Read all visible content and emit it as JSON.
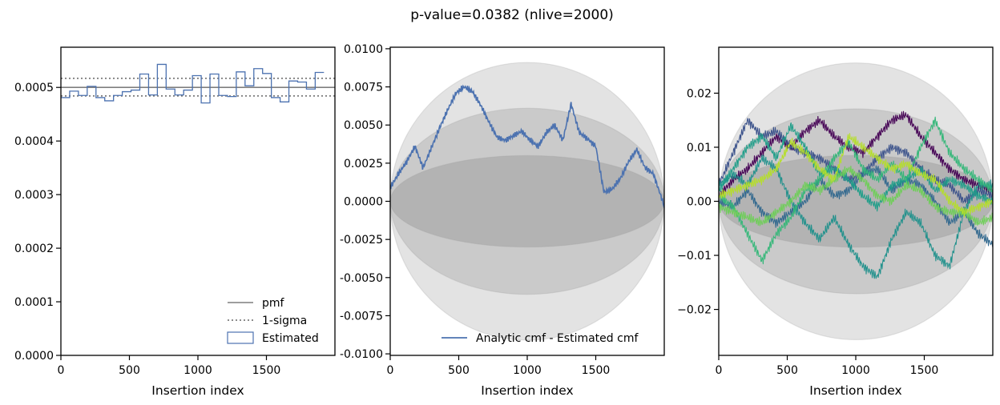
{
  "title": "p-value=0.0382 (nlive=2000)",
  "chart_data": [
    {
      "type": "line",
      "panel": "pmf",
      "xlabel": "Insertion index",
      "ylabel": "",
      "xlim": [
        0,
        2000
      ],
      "ylim": [
        0,
        0.000575
      ],
      "xticks": [
        0,
        500,
        1000,
        1500
      ],
      "xtick_labels": [
        "0",
        "500",
        "1000",
        "1500"
      ],
      "yticks": [
        0,
        0.0001,
        0.0002,
        0.0003,
        0.0004,
        0.0005
      ],
      "ytick_labels": [
        "0.0000",
        "0.0001",
        "0.0002",
        "0.0003",
        "0.0004",
        "0.0005"
      ],
      "legend_position": "lower-right",
      "legend": [
        "pmf",
        "1-sigma",
        "Estimated"
      ],
      "pmf": 0.0005,
      "sigma_band": [
        0.000484,
        0.000517
      ],
      "histogram_bin_width": 64,
      "histogram": [
        0.000481,
        0.000493,
        0.000485,
        0.000502,
        0.000481,
        0.000475,
        0.000485,
        0.000492,
        0.000495,
        0.000525,
        0.000486,
        0.000543,
        0.000497,
        0.000486,
        0.000495,
        0.000522,
        0.000471,
        0.000525,
        0.000485,
        0.000483,
        0.000529,
        0.000503,
        0.000535,
        0.000526,
        0.000481,
        0.000473,
        0.000512,
        0.00051,
        0.000497,
        0.000528
      ]
    },
    {
      "type": "line",
      "panel": "cmf-difference",
      "xlabel": "Insertion index",
      "ylabel": "",
      "xlim": [
        0,
        2000
      ],
      "ylim": [
        -0.0101,
        0.0101
      ],
      "xticks": [
        0,
        500,
        1000,
        1500
      ],
      "xtick_labels": [
        "0",
        "500",
        "1000",
        "1500"
      ],
      "yticks": [
        -0.01,
        -0.0075,
        -0.005,
        -0.0025,
        0,
        0.0025,
        0.005,
        0.0075,
        0.01
      ],
      "ytick_labels": [
        "-0.0100",
        "-0.0075",
        "-0.0050",
        "-0.0025",
        "0.0000",
        "0.0025",
        "0.0050",
        "0.0075",
        "0.0100"
      ],
      "legend_position": "lower-right",
      "bands_sigma_amplitudes": [
        0.003,
        0.0061,
        0.0091
      ],
      "series": [
        {
          "name": "Analytic cmf - Estimated cmf",
          "x": [
            0,
            60,
            120,
            180,
            240,
            300,
            360,
            420,
            480,
            540,
            600,
            660,
            720,
            780,
            840,
            900,
            960,
            1020,
            1080,
            1140,
            1200,
            1260,
            1320,
            1380,
            1440,
            1500,
            1560,
            1620,
            1680,
            1740,
            1800,
            1860,
            1920,
            2000
          ],
          "y": [
            0.0009,
            0.0018,
            0.0026,
            0.0036,
            0.0022,
            0.0035,
            0.0048,
            0.006,
            0.0071,
            0.0075,
            0.0072,
            0.0063,
            0.0052,
            0.0042,
            0.004,
            0.0043,
            0.0046,
            0.004,
            0.0036,
            0.0045,
            0.005,
            0.004,
            0.0064,
            0.0045,
            0.0041,
            0.0036,
            0.0006,
            0.0008,
            0.0015,
            0.0026,
            0.0034,
            0.0022,
            0.0018,
            -0.0003
          ]
        }
      ]
    },
    {
      "type": "line",
      "panel": "cmf-difference-multiple",
      "xlabel": "Insertion index",
      "ylabel": "",
      "xlim": [
        0,
        2000
      ],
      "ylim": [
        -0.0285,
        0.0285
      ],
      "xticks": [
        0,
        500,
        1000,
        1500
      ],
      "xtick_labels": [
        "0",
        "500",
        "1000",
        "1500"
      ],
      "yticks": [
        -0.02,
        -0.01,
        0,
        0.01,
        0.02
      ],
      "ytick_labels": [
        "−0.02",
        "−0.01",
        "0.00",
        "0.01",
        "0.02"
      ],
      "bands_sigma_amplitudes": [
        0.0085,
        0.0171,
        0.0256
      ],
      "series": [
        {
          "color": "#440154",
          "y": [
            0.001,
            0.004,
            0.006,
            0.009,
            0.012,
            0.01,
            0.013,
            0.015,
            0.012,
            0.01,
            0.009,
            0.012,
            0.015,
            0.016,
            0.012,
            0.009,
            0.006,
            0.004,
            0.003,
            0.002
          ]
        },
        {
          "color": "#3b528b",
          "y": [
            0.003,
            0.009,
            0.015,
            0.012,
            0.013,
            0.01,
            0.009,
            0.008,
            0.006,
            0.004,
            0.005,
            0.008,
            0.01,
            0.009,
            0.006,
            0.004,
            0.003,
            0.0,
            0.002,
            0.001
          ]
        },
        {
          "color": "#31688e",
          "y": [
            0.0,
            -0.001,
            0.002,
            -0.002,
            -0.004,
            -0.002,
            0.0,
            0.004,
            0.001,
            0.002,
            0.005,
            0.006,
            0.002,
            0.004,
            0.003,
            0.0,
            -0.004,
            -0.002,
            -0.006,
            -0.008
          ]
        },
        {
          "color": "#21918c",
          "y": [
            0.003,
            0.005,
            0.003,
            0.008,
            0.006,
            0.0,
            -0.004,
            -0.007,
            -0.003,
            -0.008,
            -0.012,
            -0.014,
            -0.007,
            -0.002,
            -0.004,
            -0.01,
            -0.012,
            -0.002,
            0.003,
            0.003
          ]
        },
        {
          "color": "#1f9e89",
          "y": [
            0.002,
            0.006,
            0.01,
            0.012,
            0.008,
            0.014,
            0.01,
            0.005,
            0.006,
            0.004,
            0.001,
            -0.001,
            0.003,
            0.004,
            0.006,
            0.002,
            0.004,
            0.003,
            0.001,
            0.0
          ]
        },
        {
          "color": "#35b779",
          "y": [
            0.001,
            -0.001,
            -0.006,
            -0.011,
            -0.006,
            -0.003,
            0.002,
            0.004,
            0.008,
            0.011,
            0.006,
            0.004,
            0.007,
            0.004,
            0.01,
            0.015,
            0.009,
            0.006,
            0.004,
            0.002
          ]
        },
        {
          "color": "#6ece58",
          "y": [
            -0.001,
            -0.002,
            -0.003,
            -0.004,
            -0.002,
            0.0,
            0.003,
            0.002,
            0.004,
            0.006,
            0.004,
            0.001,
            0.0,
            0.003,
            0.002,
            -0.001,
            -0.002,
            -0.002,
            -0.004,
            -0.003
          ]
        },
        {
          "color": "#b5de2b",
          "y": [
            0.001,
            0.002,
            0.003,
            0.004,
            0.006,
            0.011,
            0.009,
            0.006,
            0.004,
            0.012,
            0.01,
            0.008,
            0.006,
            0.007,
            0.005,
            0.004,
            0.0,
            -0.002,
            -0.001,
            0.0
          ]
        }
      ]
    }
  ]
}
